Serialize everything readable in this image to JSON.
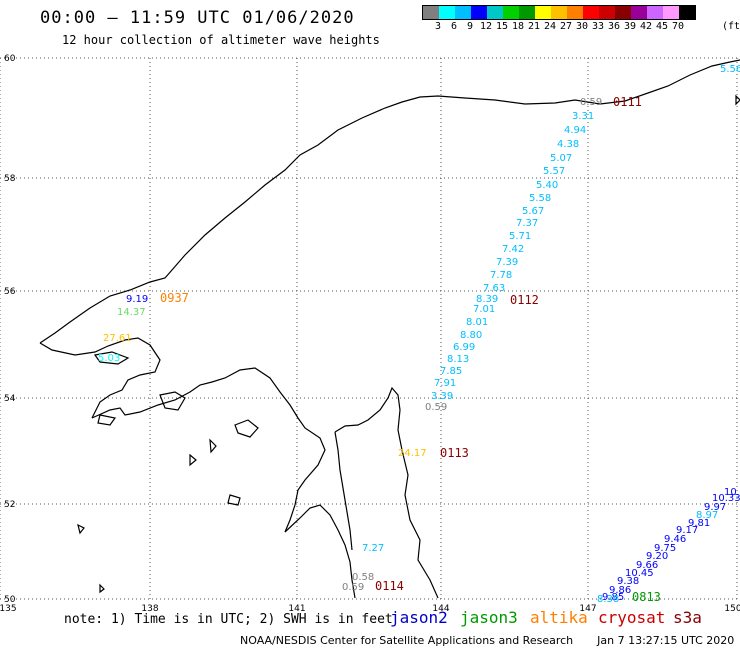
{
  "title": "00:00 – 11:59 UTC 01/06/2020",
  "subtitle": "12 hour collection of altimeter wave heights",
  "legend": {
    "unit": "(ft)",
    "colors": [
      "#7f7f7f",
      "#00ffff",
      "#00bfff",
      "#0000ff",
      "#00c8c8",
      "#00d000",
      "#009900",
      "#ffff00",
      "#ffc000",
      "#ff8000",
      "#ff0000",
      "#cc0000",
      "#880000",
      "#990099",
      "#cc66ff",
      "#ff99ff",
      "#000000"
    ],
    "labels": [
      "3",
      "6",
      "9",
      "12",
      "15",
      "18",
      "21",
      "24",
      "27",
      "30",
      "33",
      "36",
      "39",
      "42",
      "45",
      "70"
    ]
  },
  "axes": {
    "lon": [
      "135",
      "138",
      "141",
      "144",
      "147",
      "150"
    ],
    "lat": [
      "50",
      "52",
      "54",
      "56",
      "58",
      "60"
    ]
  },
  "time_labels": [
    {
      "text": "0111",
      "color": "#880000"
    },
    {
      "text": "0112",
      "color": "#880000"
    },
    {
      "text": "0113",
      "color": "#880000"
    },
    {
      "text": "0114",
      "color": "#880000"
    },
    {
      "text": "0937",
      "color": "#ff8000"
    },
    {
      "text": "0813",
      "color": "#009900"
    }
  ],
  "wave_heights": [
    {
      "v": "5.56",
      "c": "#00bfff"
    },
    {
      "v": "0.59",
      "c": "#7f7f7f"
    },
    {
      "v": "3.31",
      "c": "#00bfff"
    },
    {
      "v": "4.94",
      "c": "#00bfff"
    },
    {
      "v": "4.38",
      "c": "#00bfff"
    },
    {
      "v": "5.07",
      "c": "#00bfff"
    },
    {
      "v": "5.57",
      "c": "#00bfff"
    },
    {
      "v": "5.40",
      "c": "#00bfff"
    },
    {
      "v": "5.58",
      "c": "#00bfff"
    },
    {
      "v": "5.67",
      "c": "#00bfff"
    },
    {
      "v": "7.37",
      "c": "#00bfff"
    },
    {
      "v": "5.71",
      "c": "#00bfff"
    },
    {
      "v": "7.42",
      "c": "#00bfff"
    },
    {
      "v": "7.39",
      "c": "#00bfff"
    },
    {
      "v": "7.78",
      "c": "#00bfff"
    },
    {
      "v": "7.63",
      "c": "#00bfff"
    },
    {
      "v": "8.39",
      "c": "#00bfff"
    },
    {
      "v": "7.01",
      "c": "#00bfff"
    },
    {
      "v": "8.01",
      "c": "#00bfff"
    },
    {
      "v": "8.80",
      "c": "#00bfff"
    },
    {
      "v": "6.99",
      "c": "#00bfff"
    },
    {
      "v": "8.13",
      "c": "#00bfff"
    },
    {
      "v": "7.85",
      "c": "#00bfff"
    },
    {
      "v": "7.91",
      "c": "#00bfff"
    },
    {
      "v": "3.39",
      "c": "#00bfff"
    },
    {
      "v": "0.59",
      "c": "#7f7f7f"
    },
    {
      "v": "9.19",
      "c": "#0000ff"
    },
    {
      "v": "14.37",
      "c": "#66dd66"
    },
    {
      "v": "27.61",
      "c": "#ffc000"
    },
    {
      "v": "5.03",
      "c": "#00ffff"
    },
    {
      "v": "24.17",
      "c": "#ffc000"
    },
    {
      "v": "7.27",
      "c": "#00bfff"
    },
    {
      "v": "0.58",
      "c": "#7f7f7f"
    },
    {
      "v": "0.59",
      "c": "#7f7f7f"
    },
    {
      "v": "10",
      "c": "#0000ff"
    },
    {
      "v": "10.33",
      "c": "#0000ff"
    },
    {
      "v": "9.97",
      "c": "#0000ff"
    },
    {
      "v": "8.97",
      "c": "#00bfff"
    },
    {
      "v": "9.81",
      "c": "#0000ff"
    },
    {
      "v": "9.17",
      "c": "#0000ff"
    },
    {
      "v": "9.46",
      "c": "#0000ff"
    },
    {
      "v": "9.75",
      "c": "#0000ff"
    },
    {
      "v": "9.20",
      "c": "#0000ff"
    },
    {
      "v": "9.66",
      "c": "#0000ff"
    },
    {
      "v": "10.45",
      "c": "#0000ff"
    },
    {
      "v": "9.38",
      "c": "#0000ff"
    },
    {
      "v": "9.86",
      "c": "#0000ff"
    },
    {
      "v": "9.85",
      "c": "#0000ff"
    },
    {
      "v": "8.38",
      "c": "#00bfff"
    }
  ],
  "note": "note: 1) Time is in UTC; 2) SWH is in feet",
  "satellites": [
    {
      "name": "jason2",
      "color": "#0000cc"
    },
    {
      "name": "jason3",
      "color": "#009900"
    },
    {
      "name": "altika",
      "color": "#ff8000"
    },
    {
      "name": "cryosat",
      "color": "#cc0000"
    },
    {
      "name": "s3a",
      "color": "#880000"
    }
  ],
  "footer": {
    "org": "NOAA/NESDIS Center for Satellite Applications and Research",
    "timestamp": "Jan  7 13:27:15 UTC 2020"
  }
}
